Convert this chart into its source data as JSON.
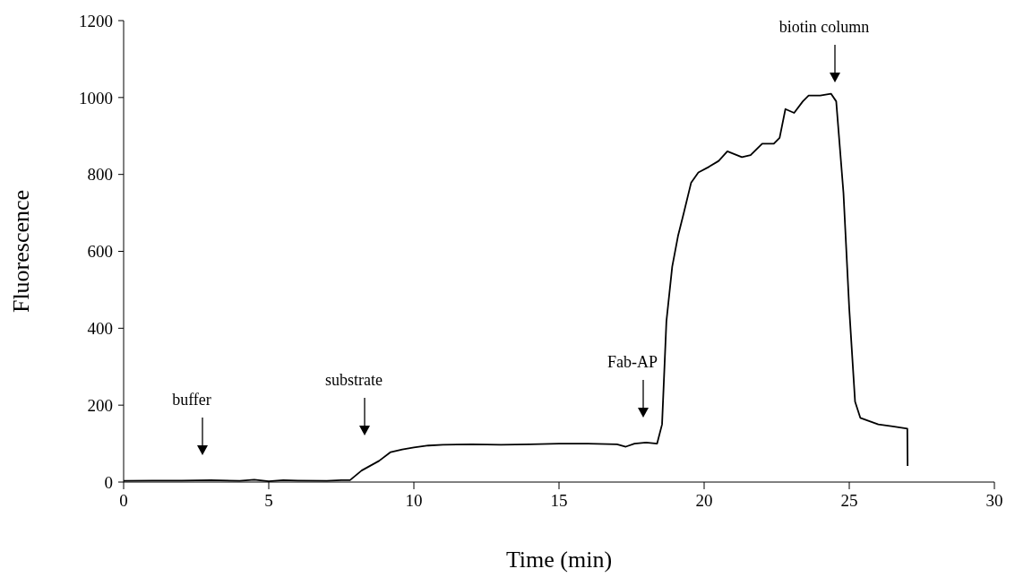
{
  "chart_data": {
    "type": "line",
    "xlabel": "Time (min)",
    "ylabel": "Fluorescence",
    "xlim": [
      0,
      30
    ],
    "xticks": [
      0,
      5,
      10,
      15,
      20,
      25,
      30
    ],
    "ylim": [
      0,
      1200
    ],
    "yticks": [
      0,
      200,
      400,
      600,
      800,
      1000,
      1200
    ],
    "grid": false,
    "legend": false,
    "marker": "none",
    "line_style": "solid",
    "series": [
      {
        "color": "#000000",
        "x": [
          0,
          1,
          2,
          3,
          4,
          4.5,
          5,
          5.5,
          6,
          7,
          7.5,
          7.8,
          8.2,
          8.8,
          9.2,
          9.6,
          10,
          10.5,
          11,
          12,
          13,
          14,
          15,
          16,
          17,
          17.3,
          17.6,
          18,
          18.38,
          18.55,
          18.7,
          18.9,
          19.1,
          19.3,
          19.55,
          19.8,
          20.17,
          20.5,
          20.8,
          21.3,
          21.6,
          22,
          22.4,
          22.6,
          22.8,
          23.1,
          23.4,
          23.6,
          24,
          24.37,
          24.55,
          24.8,
          25,
          25.2,
          25.38,
          25.7,
          26,
          26.5,
          27,
          27.01
        ],
        "values": [
          3,
          4,
          4,
          5,
          3,
          6,
          2,
          5,
          4,
          3,
          5,
          5,
          30,
          55,
          78,
          85,
          90,
          95,
          97,
          98,
          97,
          98,
          100,
          100,
          98,
          92,
          100,
          103,
          100,
          150,
          418,
          560,
          640,
          700,
          778,
          805,
          820,
          835,
          860,
          845,
          850,
          880,
          880,
          895,
          970,
          960,
          990,
          1005,
          1005,
          1010,
          990,
          752,
          450,
          209,
          167,
          158,
          150,
          145,
          139,
          42
        ]
      }
    ],
    "annotations": [
      "buffer",
      "substrate",
      "Fab-AP",
      "biotin column"
    ]
  }
}
